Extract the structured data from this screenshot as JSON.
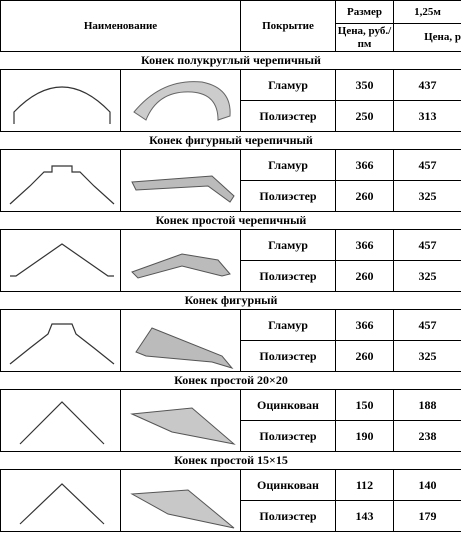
{
  "header": {
    "name": "Наименование",
    "coating": "Покрытие",
    "size": "Размер",
    "length": "1,25м",
    "price_unit": "Цена, руб./пм",
    "price_unit_2": "Цена, р"
  },
  "sections": [
    {
      "title": "Конек полукруглый черепичный",
      "rows": [
        {
          "coating": "Гламур",
          "price": 350,
          "price_2": 437
        },
        {
          "coating": "Полиэстер",
          "price": 250,
          "price_2": 313
        }
      ]
    },
    {
      "title": "Конек фигурный черепичный",
      "rows": [
        {
          "coating": "Гламур",
          "price": 366,
          "price_2": 457
        },
        {
          "coating": "Полиэстер",
          "price": 260,
          "price_2": 325
        }
      ]
    },
    {
      "title": "Конек простой черепичный",
      "rows": [
        {
          "coating": "Гламур",
          "price": 366,
          "price_2": 457
        },
        {
          "coating": "Полиэстер",
          "price": 260,
          "price_2": 325
        }
      ]
    },
    {
      "title": "Конек фигурный",
      "rows": [
        {
          "coating": "Гламур",
          "price": 366,
          "price_2": 457
        },
        {
          "coating": "Полиэстер",
          "price": 260,
          "price_2": 325
        }
      ]
    },
    {
      "title": "Конек простой 20×20",
      "rows": [
        {
          "coating": "Оцинкован",
          "price": 150,
          "price_2": 188
        },
        {
          "coating": "Полиэстер",
          "price": 190,
          "price_2": 238
        }
      ]
    },
    {
      "title": "Конек простой 15×15",
      "rows": [
        {
          "coating": "Оцинкован",
          "price": 112,
          "price_2": 140
        },
        {
          "coating": "Полиэстер",
          "price": 143,
          "price_2": 179
        }
      ]
    }
  ]
}
